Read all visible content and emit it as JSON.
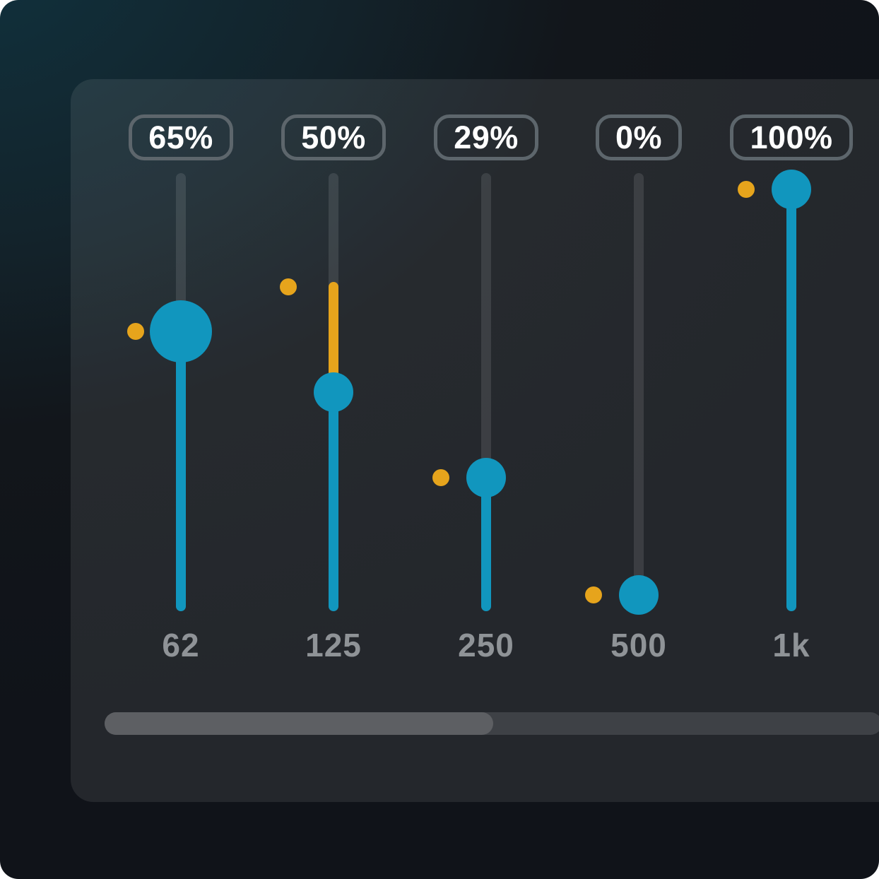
{
  "equalizer": {
    "bands": [
      {
        "freq_label": "62",
        "percent": 65,
        "percent_label": "65%",
        "marker_percent": 65,
        "active": true,
        "show_boost": false
      },
      {
        "freq_label": "125",
        "percent": 50,
        "percent_label": "50%",
        "marker_percent": 76,
        "active": false,
        "show_boost": true
      },
      {
        "freq_label": "250",
        "percent": 29,
        "percent_label": "29%",
        "marker_percent": 29,
        "active": false,
        "show_boost": false
      },
      {
        "freq_label": "500",
        "percent": 0,
        "percent_label": "0%",
        "marker_percent": 0,
        "active": false,
        "show_boost": false
      },
      {
        "freq_label": "1k",
        "percent": 100,
        "percent_label": "100%",
        "marker_percent": 100,
        "active": false,
        "show_boost": false
      }
    ],
    "scrollbar": {
      "thumb_percent": 50,
      "thumb_position": "left"
    },
    "colors": {
      "accent_blue": "#1196be",
      "accent_yellow": "#e6a41c",
      "badge_border": "#5d666c",
      "freq_text": "#8f9397",
      "scrollbar_track": "#3e4146",
      "scrollbar_thumb": "#5d5f63",
      "panel": "rgba(255,255,255,0.085)",
      "background_teal": "#10323e",
      "background_dark": "#101319"
    }
  }
}
